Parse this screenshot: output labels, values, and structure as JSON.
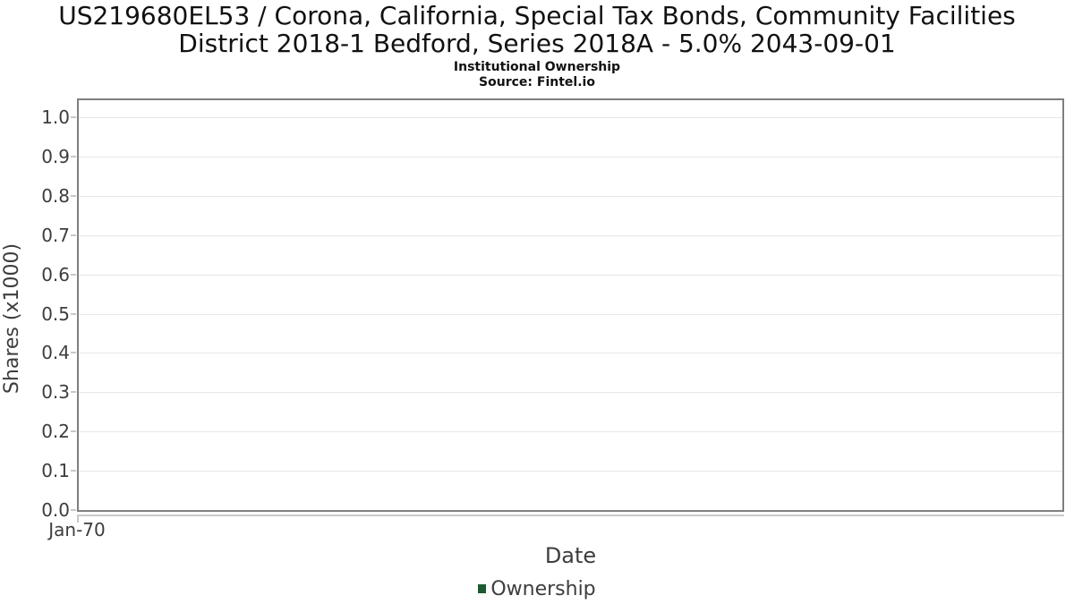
{
  "header": {
    "title_line1": "US219680EL53 / Corona, California, Special Tax Bonds, Community Facilities",
    "title_line2": "District 2018-1 Bedford, Series 2018A - 5.0% 2043-09-01",
    "subtitle": "Institutional Ownership",
    "source": "Source: Fintel.io"
  },
  "colors": {
    "ownership_green": "#1e5a31",
    "plot_border": "#7f7f7f",
    "gridline": "#e6e6e6",
    "axis_text": "#3d3d3d"
  },
  "chart_data": {
    "type": "line",
    "title": "US219680EL53 / Corona, California, Special Tax Bonds, Community Facilities District 2018-1 Bedford, Series 2018A - 5.0% 2043-09-01",
    "subtitle": "Institutional Ownership",
    "source": "Source: Fintel.io",
    "xlabel": "Date",
    "ylabel": "Shares (x1000)",
    "x_tick_labels": [
      "Jan-70"
    ],
    "y_tick_labels": [
      "0.0",
      "0.1",
      "0.2",
      "0.3",
      "0.4",
      "0.5",
      "0.6",
      "0.7",
      "0.8",
      "0.9",
      "1.0"
    ],
    "ylim": [
      0,
      1.05
    ],
    "grid": true,
    "legend_position": "bottom",
    "legend": [
      {
        "name": "Ownership",
        "color": "#1e5a31"
      }
    ],
    "series": [
      {
        "name": "Ownership",
        "x": [],
        "y": []
      }
    ]
  }
}
